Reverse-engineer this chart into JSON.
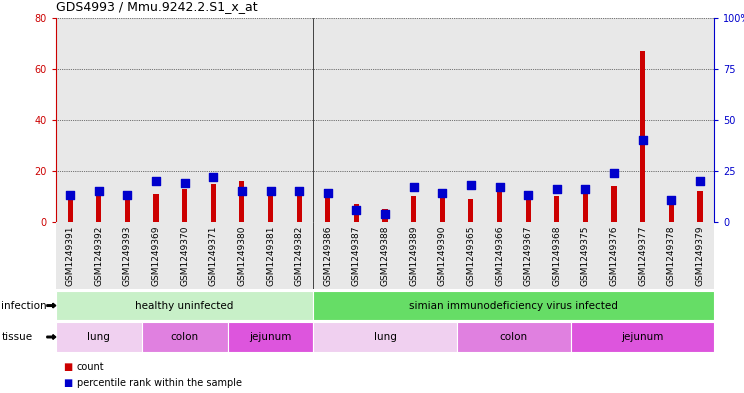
{
  "title": "GDS4993 / Mmu.9242.2.S1_x_at",
  "samples": [
    "GSM1249391",
    "GSM1249392",
    "GSM1249393",
    "GSM1249369",
    "GSM1249370",
    "GSM1249371",
    "GSM1249380",
    "GSM1249381",
    "GSM1249382",
    "GSM1249386",
    "GSM1249387",
    "GSM1249388",
    "GSM1249389",
    "GSM1249390",
    "GSM1249365",
    "GSM1249366",
    "GSM1249367",
    "GSM1249368",
    "GSM1249375",
    "GSM1249376",
    "GSM1249377",
    "GSM1249378",
    "GSM1249379"
  ],
  "counts": [
    10,
    12,
    10,
    11,
    13,
    15,
    16,
    13,
    12,
    12,
    7,
    5,
    10,
    11,
    9,
    12,
    9,
    10,
    13,
    14,
    67,
    9,
    12
  ],
  "percentiles": [
    13,
    15,
    13,
    20,
    19,
    22,
    15,
    15,
    15,
    14,
    6,
    4,
    17,
    14,
    18,
    17,
    13,
    16,
    16,
    24,
    40,
    11,
    20
  ],
  "bar_color": "#cc0000",
  "dot_color": "#0000cc",
  "left_ylim": [
    0,
    80
  ],
  "right_ylim": [
    0,
    100
  ],
  "left_yticks": [
    0,
    20,
    40,
    60,
    80
  ],
  "right_yticks": [
    0,
    25,
    50,
    75,
    100
  ],
  "right_yticklabels": [
    "0",
    "25",
    "50",
    "75",
    "100%"
  ],
  "infection_groups": [
    {
      "label": "healthy uninfected",
      "start": 0,
      "end": 9,
      "color": "#c8f0c8"
    },
    {
      "label": "simian immunodeficiency virus infected",
      "start": 9,
      "end": 23,
      "color": "#66dd66"
    }
  ],
  "tissue_groups": [
    {
      "label": "lung",
      "start": 0,
      "end": 3,
      "color": "#f0d0f0"
    },
    {
      "label": "colon",
      "start": 3,
      "end": 6,
      "color": "#e080e0"
    },
    {
      "label": "jejunum",
      "start": 6,
      "end": 9,
      "color": "#dd55dd"
    },
    {
      "label": "lung",
      "start": 9,
      "end": 14,
      "color": "#f0d0f0"
    },
    {
      "label": "colon",
      "start": 14,
      "end": 18,
      "color": "#e080e0"
    },
    {
      "label": "jejunum",
      "start": 18,
      "end": 23,
      "color": "#dd55dd"
    }
  ],
  "legend_count_label": "count",
  "legend_percentile_label": "percentile rank within the sample",
  "infection_label": "infection",
  "tissue_label": "tissue",
  "bg_color": "#e8e8e8",
  "bar_width": 0.18,
  "dot_size": 30,
  "dot_marker": "s"
}
